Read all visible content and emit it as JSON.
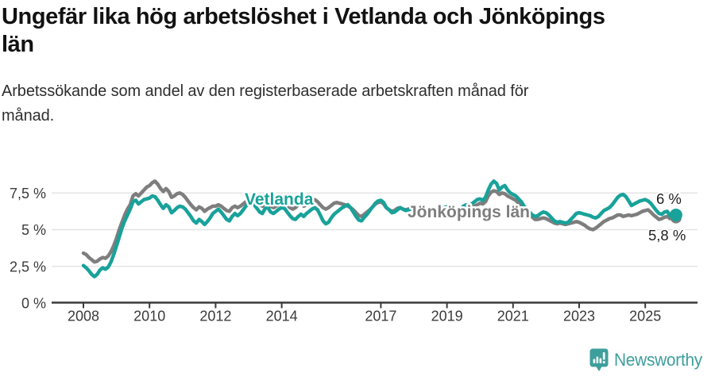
{
  "header": {
    "title_lines": [
      "Ungefär lika hög arbetslöshet i Vetlanda och Jönköpings",
      "län"
    ],
    "subtitle_lines": [
      "Arbetssökande som andel av den registerbaserade arbetskraften månad för",
      "månad."
    ]
  },
  "colors": {
    "vetlanda_teal": "#18a29a",
    "jonkoping_gray": "#7e7e7e",
    "gridline": "#e4e4e4",
    "axis": "#3a3a3a",
    "tick_label": "#3b3b3b",
    "end_label_text": "#1f1f1f",
    "logo_teal": "#3d9f9c"
  },
  "chart_data": {
    "type": "line",
    "x_start": "2008-01",
    "x_interval": "month",
    "x_tick_years": [
      2008,
      2010,
      2012,
      2014,
      2017,
      2019,
      2021,
      2023,
      2025
    ],
    "y_ticks": [
      {
        "value": 0,
        "label": "0 %"
      },
      {
        "value": 2.5,
        "label": "2,5 %"
      },
      {
        "value": 5,
        "label": "5 %"
      },
      {
        "value": 7.5,
        "label": "7,5 %"
      }
    ],
    "ylim": [
      0,
      8.6
    ],
    "grid": "horizontal",
    "legend_position": "inline-labels-on-chart",
    "series": [
      {
        "name": "Jönköpings län",
        "color": "#7e7e7e",
        "end_value": 5.8,
        "end_value_label": "5,8 %",
        "values": [
          3.4,
          3.3,
          3.1,
          2.95,
          2.8,
          2.85,
          3.0,
          3.1,
          3.05,
          3.2,
          3.5,
          3.9,
          4.4,
          5.0,
          5.5,
          6.0,
          6.4,
          6.7,
          7.3,
          7.45,
          7.3,
          7.5,
          7.7,
          7.9,
          8.0,
          8.2,
          8.3,
          8.1,
          7.8,
          7.6,
          7.8,
          7.6,
          7.2,
          7.3,
          7.45,
          7.5,
          7.4,
          7.2,
          6.95,
          6.7,
          6.5,
          6.35,
          6.55,
          6.45,
          6.25,
          6.4,
          6.5,
          6.6,
          6.6,
          6.7,
          6.6,
          6.45,
          6.3,
          6.25,
          6.5,
          6.6,
          6.5,
          6.6,
          6.75,
          6.9,
          7.0,
          7.1,
          7.0,
          6.85,
          6.7,
          6.6,
          6.8,
          6.85,
          6.6,
          6.5,
          6.6,
          6.7,
          6.8,
          6.9,
          6.7,
          6.5,
          6.4,
          6.5,
          6.7,
          6.8,
          6.6,
          6.7,
          6.9,
          7.0,
          7.05,
          6.9,
          6.7,
          6.5,
          6.4,
          6.5,
          6.65,
          6.8,
          6.85,
          6.8,
          6.75,
          6.7,
          6.6,
          6.5,
          6.35,
          6.15,
          5.95,
          5.9,
          6.05,
          6.2,
          6.35,
          6.55,
          6.75,
          6.85,
          6.9,
          6.75,
          6.5,
          6.35,
          6.25,
          6.3,
          6.45,
          6.5,
          6.4,
          6.35,
          6.4,
          6.45,
          6.4,
          6.35,
          6.2,
          6.1,
          6.0,
          6.05,
          6.15,
          6.2,
          6.1,
          6.15,
          6.25,
          6.3,
          6.35,
          6.3,
          6.2,
          6.15,
          6.1,
          6.2,
          6.35,
          6.45,
          6.4,
          6.5,
          6.6,
          6.7,
          6.8,
          6.75,
          6.9,
          7.3,
          7.55,
          7.65,
          7.6,
          7.4,
          7.5,
          7.45,
          7.3,
          7.2,
          7.1,
          7.0,
          6.8,
          6.6,
          6.4,
          6.2,
          6.0,
          5.85,
          5.7,
          5.7,
          5.75,
          5.8,
          5.75,
          5.65,
          5.55,
          5.45,
          5.4,
          5.45,
          5.4,
          5.35,
          5.4,
          5.45,
          5.5,
          5.55,
          5.5,
          5.4,
          5.3,
          5.15,
          5.05,
          5.0,
          5.1,
          5.25,
          5.4,
          5.55,
          5.65,
          5.75,
          5.8,
          5.9,
          6.0,
          6.0,
          5.9,
          5.95,
          6.0,
          5.95,
          6.0,
          6.05,
          6.15,
          6.25,
          6.3,
          6.35,
          6.2,
          6.0,
          5.85,
          5.7,
          5.75,
          5.85,
          5.9,
          5.75,
          5.8
        ]
      },
      {
        "name": "Vetlanda",
        "color": "#18a29a",
        "end_value": 6.0,
        "end_value_label": "6 %",
        "values": [
          2.55,
          2.4,
          2.2,
          1.95,
          1.8,
          1.95,
          2.25,
          2.4,
          2.3,
          2.45,
          2.8,
          3.3,
          3.9,
          4.5,
          5.1,
          5.6,
          6.0,
          6.4,
          6.9,
          7.0,
          6.75,
          6.9,
          7.05,
          7.1,
          7.15,
          7.3,
          7.25,
          7.0,
          6.7,
          6.45,
          6.7,
          6.55,
          6.15,
          6.3,
          6.5,
          6.6,
          6.55,
          6.4,
          6.15,
          5.9,
          5.6,
          5.45,
          5.7,
          5.55,
          5.35,
          5.55,
          5.8,
          6.1,
          6.25,
          6.4,
          6.2,
          5.95,
          5.7,
          5.6,
          5.9,
          6.1,
          5.95,
          6.1,
          6.35,
          6.6,
          6.75,
          6.9,
          6.7,
          6.45,
          6.2,
          6.1,
          6.45,
          6.5,
          6.2,
          6.1,
          6.25,
          6.4,
          6.5,
          6.45,
          6.2,
          5.95,
          5.75,
          5.7,
          5.9,
          6.05,
          5.9,
          6.1,
          6.25,
          6.4,
          6.5,
          6.35,
          6.0,
          5.6,
          5.4,
          5.5,
          5.8,
          6.05,
          6.2,
          6.35,
          6.5,
          6.6,
          6.7,
          6.5,
          6.2,
          5.9,
          5.65,
          5.6,
          5.85,
          6.05,
          6.3,
          6.55,
          6.8,
          6.95,
          7.0,
          6.85,
          6.5,
          6.35,
          6.15,
          6.2,
          6.35,
          6.5,
          6.4,
          6.3,
          6.35,
          6.4,
          6.45,
          6.4,
          6.25,
          6.1,
          6.0,
          6.05,
          6.2,
          6.3,
          6.2,
          6.3,
          6.4,
          6.5,
          6.55,
          6.5,
          6.4,
          6.3,
          6.25,
          6.35,
          6.6,
          6.7,
          6.6,
          6.75,
          6.9,
          7.05,
          7.1,
          7.0,
          7.2,
          7.7,
          8.1,
          8.3,
          8.15,
          7.7,
          7.9,
          8.0,
          7.7,
          7.5,
          7.4,
          7.3,
          7.1,
          6.9,
          6.6,
          6.4,
          6.2,
          6.0,
          5.9,
          5.95,
          6.1,
          6.2,
          6.15,
          6.0,
          5.8,
          5.6,
          5.5,
          5.55,
          5.5,
          5.45,
          5.5,
          5.7,
          5.9,
          6.1,
          6.15,
          6.1,
          6.05,
          6.0,
          5.95,
          5.85,
          5.8,
          5.9,
          6.1,
          6.3,
          6.4,
          6.5,
          6.7,
          6.95,
          7.2,
          7.35,
          7.4,
          7.25,
          6.95,
          6.65,
          6.75,
          6.85,
          6.95,
          7.0,
          7.05,
          6.95,
          6.8,
          6.55,
          6.3,
          6.1,
          6.05,
          6.2,
          6.25,
          5.95,
          6.0
        ]
      }
    ]
  },
  "footer": {
    "brand": "Newsworthy"
  }
}
